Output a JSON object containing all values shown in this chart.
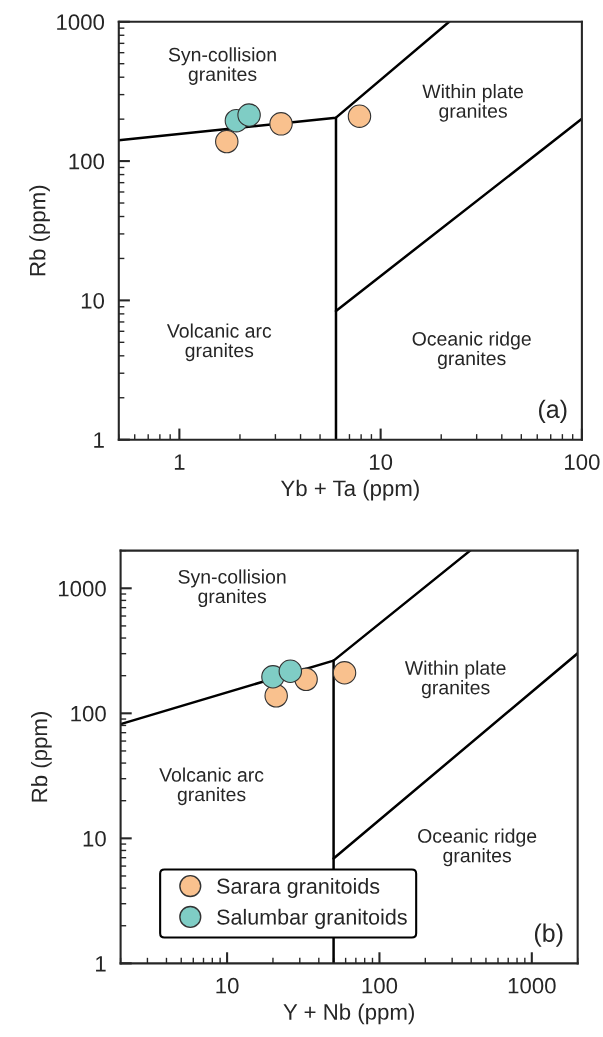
{
  "chart_data": [
    {
      "type": "scatter",
      "xlabel": "Yb + Ta (ppm)",
      "ylabel": "Rb (ppm)",
      "log": "xy",
      "xlim": [
        0.5,
        100
      ],
      "ylim": [
        1,
        1000
      ],
      "xticks": [
        1,
        10,
        100
      ],
      "yticks": [
        1,
        10,
        100,
        1000
      ],
      "legend": false,
      "grid": false,
      "series": [
        {
          "marker": "circle",
          "color": "#f9c18e",
          "x": [
            1.72,
            3.2,
            7.85
          ],
          "values": [
            138,
            185,
            210
          ]
        },
        {
          "marker": "circle",
          "color": "#7fcdc5",
          "x": [
            1.92,
            2.22
          ],
          "values": [
            195,
            214
          ]
        },
        {
          "type": "line",
          "marker": "none",
          "color": "#000000",
          "x": [
            0.5,
            6,
            21.9
          ],
          "values": [
            141,
            205,
            1000
          ]
        },
        {
          "type": "line",
          "marker": "none",
          "color": "#000000",
          "x": [
            6,
            6
          ],
          "values": [
            205,
            1
          ]
        },
        {
          "type": "line",
          "marker": "none",
          "color": "#000000",
          "x": [
            6,
            100
          ],
          "values": [
            8.4,
            201
          ]
        }
      ],
      "annotations": [
        "Syn-collision\ngranites",
        "Within plate\ngranites",
        "Volcanic arc\ngranites",
        "Oceanic ridge\ngranites",
        "(a)"
      ]
    },
    {
      "type": "scatter",
      "xlabel": "Y + Nb (ppm)",
      "ylabel": "Rb (ppm)",
      "log": "xy",
      "xlim": [
        2,
        2000
      ],
      "ylim": [
        1,
        2000
      ],
      "xticks": [
        10,
        100,
        1000
      ],
      "yticks": [
        1,
        10,
        100,
        1000
      ],
      "legend": "bottom left",
      "grid": false,
      "series": [
        {
          "name": "Sarara granitoids",
          "marker": "circle",
          "color": "#f9c18e",
          "x": [
            21,
            33,
            59
          ],
          "values": [
            138,
            187,
            211
          ]
        },
        {
          "name": "Salumbar granitoids",
          "marker": "circle",
          "color": "#7fcdc5",
          "x": [
            20,
            26
          ],
          "values": [
            196,
            217
          ]
        },
        {
          "type": "line",
          "marker": "none",
          "color": "#000000",
          "x": [
            2,
            50,
            394
          ],
          "values": [
            82,
            264,
            2000
          ]
        },
        {
          "type": "line",
          "marker": "none",
          "color": "#000000",
          "x": [
            50,
            50
          ],
          "values": [
            264,
            1
          ]
        },
        {
          "type": "line",
          "marker": "none",
          "color": "#000000",
          "x": [
            50,
            2000
          ],
          "values": [
            6.9,
            302
          ]
        }
      ],
      "annotations": [
        "Syn-collision\ngranites",
        "Within plate\ngranites",
        "Volcanic arc\ngranites",
        "Oceanic ridge\ngranites",
        "(b)"
      ]
    }
  ]
}
